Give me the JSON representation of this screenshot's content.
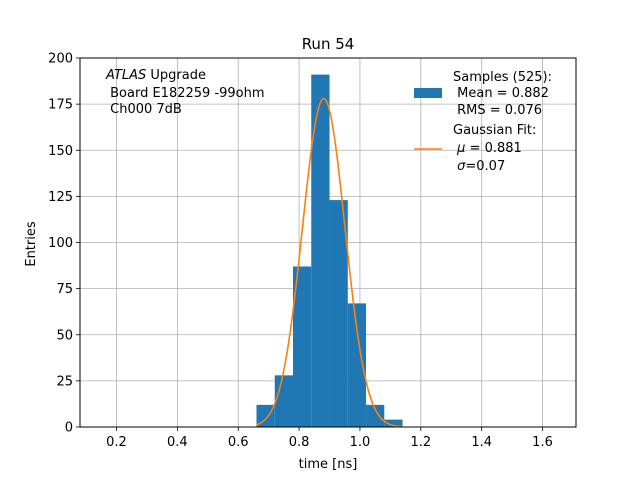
{
  "chart_data": {
    "type": "bar",
    "title": "Run 54",
    "xlabel": "time [ns]",
    "ylabel": "Entries",
    "xlim": [
      0.08,
      1.71
    ],
    "ylim": [
      0,
      200
    ],
    "grid": true,
    "x_ticks": [
      "0.2",
      "0.4",
      "0.6",
      "0.8",
      "1.0",
      "1.2",
      "1.4",
      "1.6"
    ],
    "y_ticks": [
      "0",
      "25",
      "50",
      "75",
      "100",
      "125",
      "150",
      "175",
      "200"
    ],
    "bin_edges": [
      0.66,
      0.72,
      0.78,
      0.84,
      0.9,
      0.96,
      1.02,
      1.08,
      1.14
    ],
    "values": [
      12,
      28,
      87,
      191,
      123,
      67,
      12,
      4
    ],
    "bar_color": "#1f77b4",
    "fit": {
      "name": "Gaussian Fit",
      "mu": 0.881,
      "sigma": 0.07,
      "amplitude": 178,
      "x_range": [
        0.66,
        1.14
      ],
      "color": "#ff7f0e"
    },
    "annotation": {
      "line1_italic": "ATLAS",
      "line1_rest": " Upgrade",
      "line2": " Board E182259 -99ohm",
      "line3": " Ch000 7dB"
    },
    "legend": {
      "position": "top-right",
      "samples_line1": "Samples (525):",
      "samples_line2": " Mean = 0.882",
      "samples_line3": " RMS = 0.076",
      "fit_line1": "Gaussian Fit:",
      "fit_line2_prefix": " ",
      "fit_line2_symbol": "μ",
      "fit_line2_rest": " = 0.881",
      "fit_line3_prefix": " ",
      "fit_line3_symbol": "σ",
      "fit_line3_rest": "=0.07"
    }
  }
}
